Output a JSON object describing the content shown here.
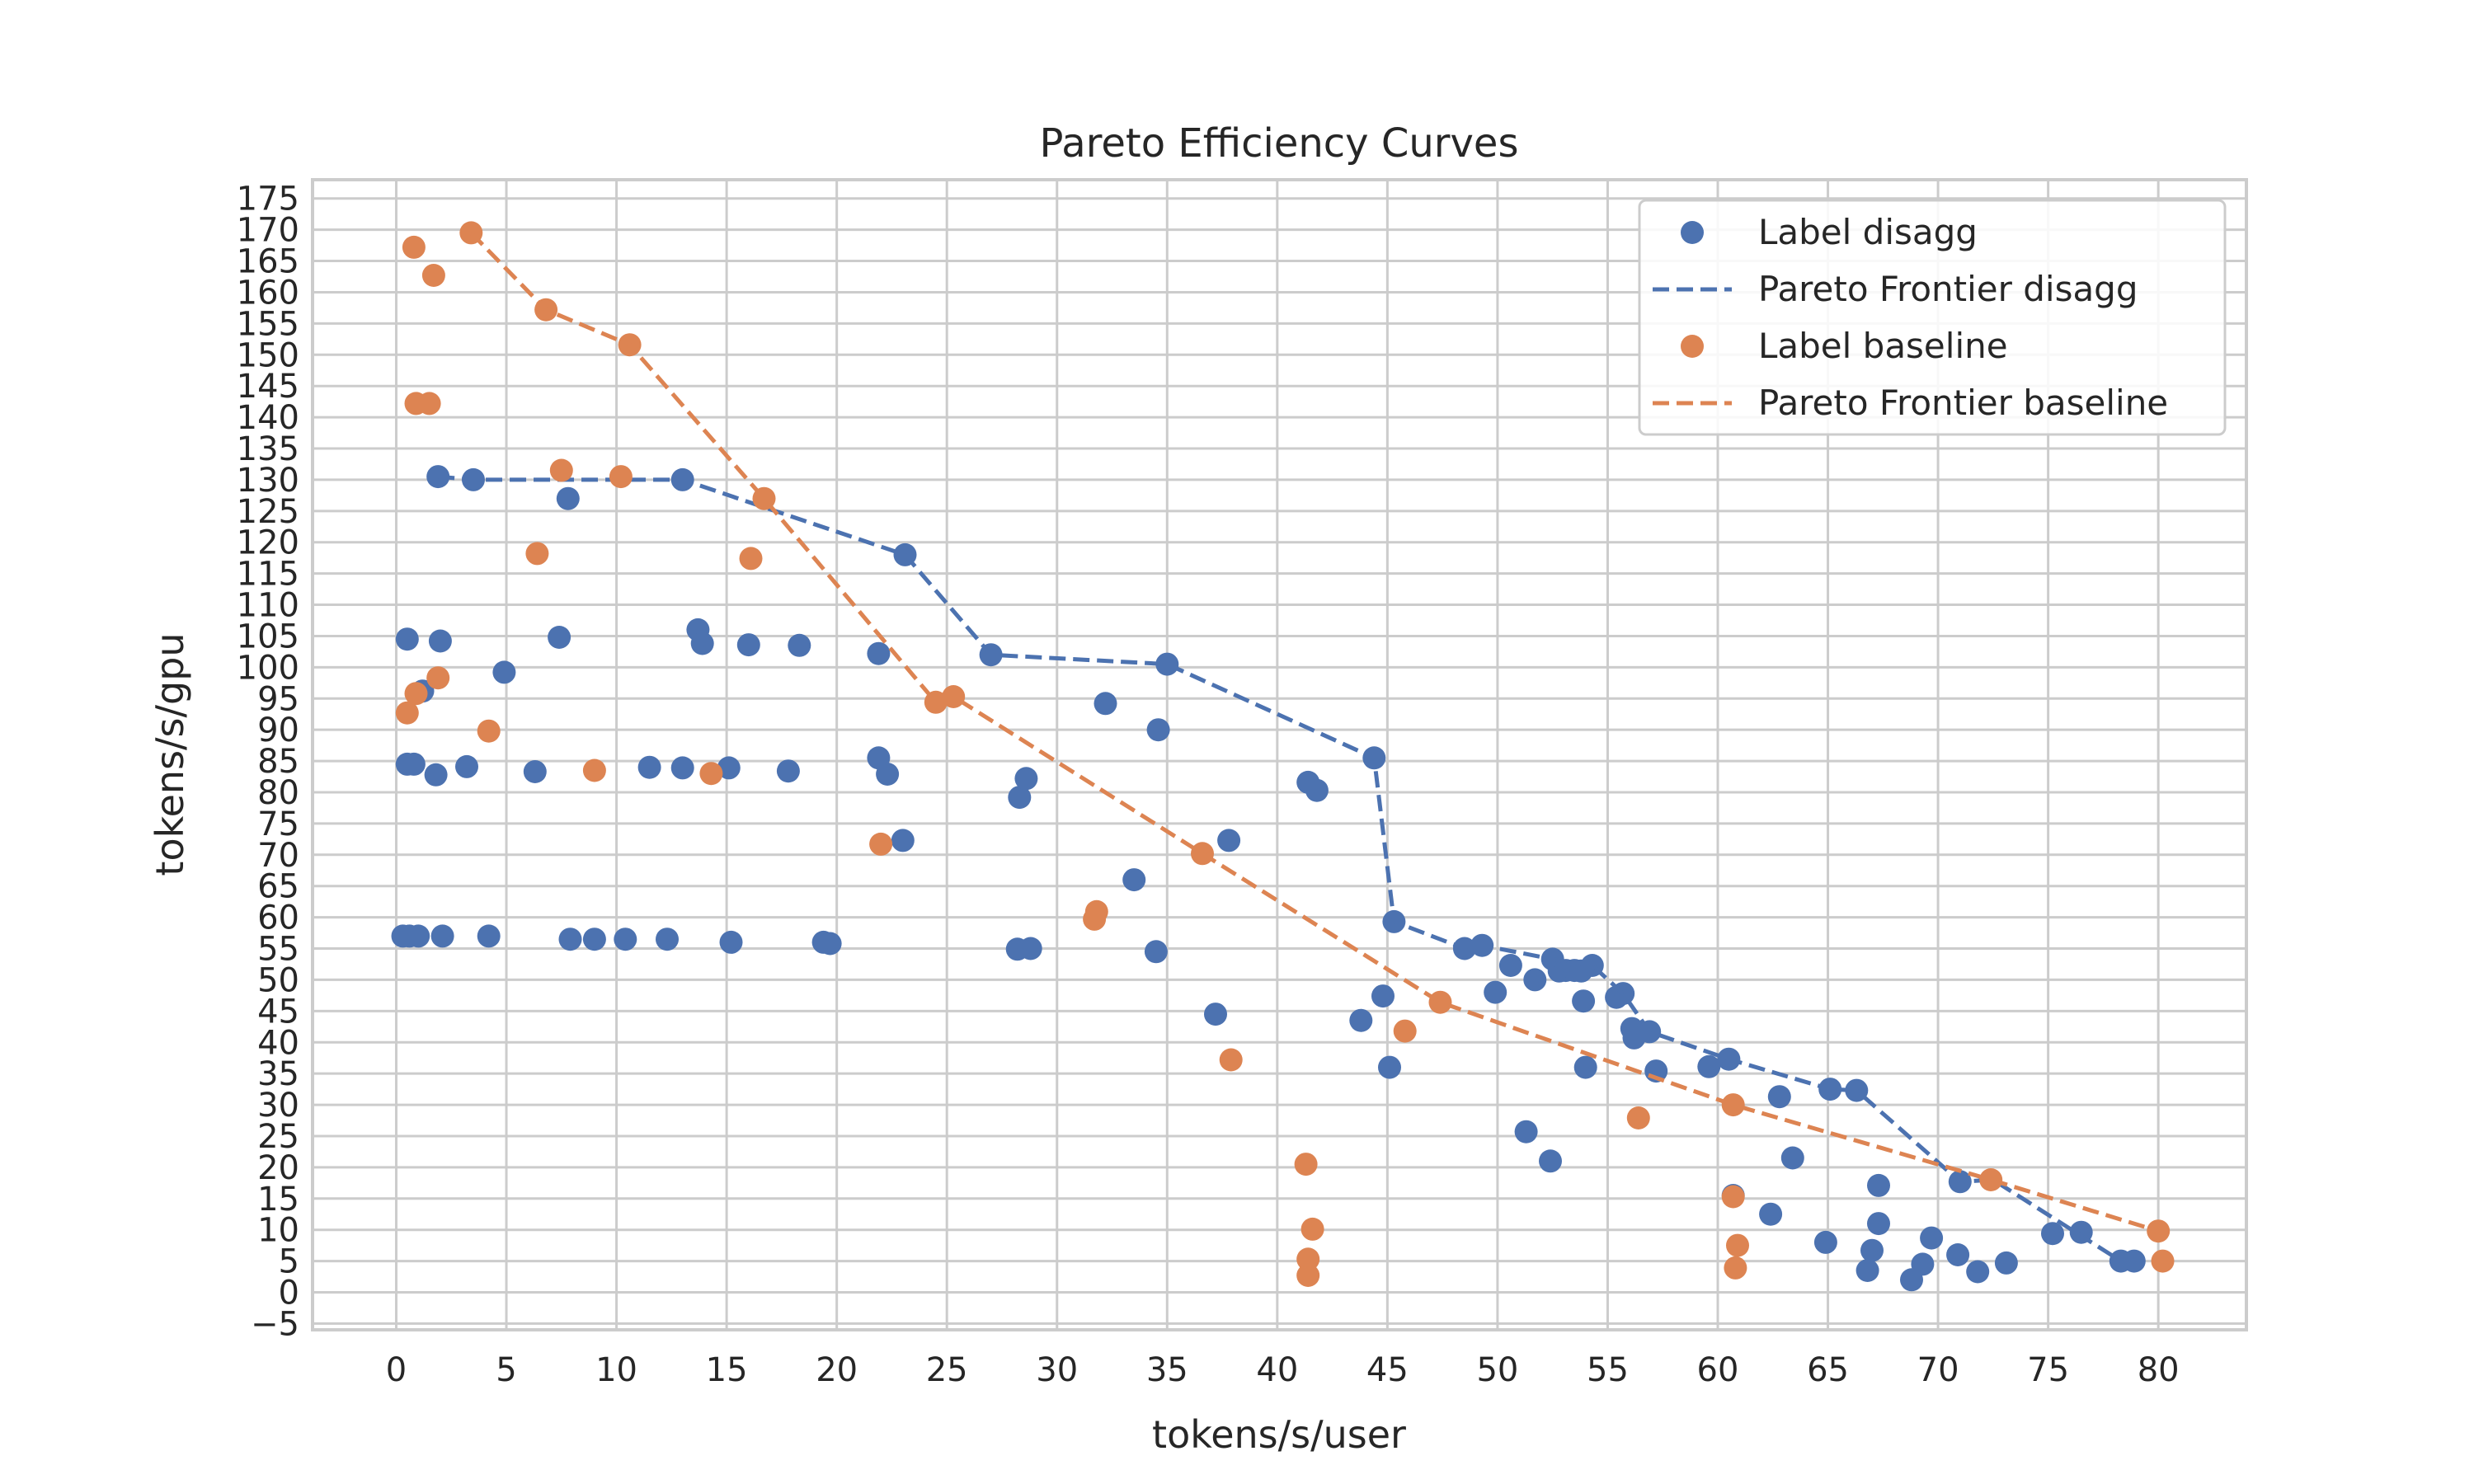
{
  "chart_data": {
    "type": "scatter",
    "title": "Pareto Efficiency Curves",
    "xlabel": "tokens/s/user",
    "ylabel": "tokens/s/gpu",
    "xlim": [
      -3.8,
      84
    ],
    "ylim": [
      -6,
      178
    ],
    "xticks": [
      0,
      5,
      10,
      15,
      20,
      25,
      30,
      35,
      40,
      45,
      50,
      55,
      60,
      65,
      70,
      75,
      80
    ],
    "yticks": [
      -5,
      0,
      5,
      10,
      15,
      20,
      25,
      30,
      35,
      40,
      45,
      50,
      55,
      60,
      65,
      70,
      75,
      80,
      85,
      90,
      95,
      100,
      105,
      110,
      115,
      120,
      125,
      130,
      135,
      140,
      145,
      150,
      155,
      160,
      165,
      170,
      175
    ],
    "grid": true,
    "legend_position": "top-right",
    "colors": {
      "disagg": "#4c72b0",
      "baseline": "#dd8452"
    },
    "legend": [
      {
        "label": "Label disagg",
        "kind": "marker",
        "series": "disagg"
      },
      {
        "label": "Pareto Frontier disagg",
        "kind": "line",
        "series": "disagg"
      },
      {
        "label": "Label baseline",
        "kind": "marker",
        "series": "baseline"
      },
      {
        "label": "Pareto Frontier baseline",
        "kind": "line",
        "series": "baseline"
      }
    ],
    "series": [
      {
        "name": "Label disagg",
        "kind": "scatter",
        "key": "disagg",
        "points": [
          [
            0.3,
            57
          ],
          [
            0.6,
            57
          ],
          [
            1.0,
            57
          ],
          [
            2.1,
            57
          ],
          [
            4.2,
            57
          ],
          [
            7.9,
            56.5
          ],
          [
            9.0,
            56.5
          ],
          [
            10.4,
            56.5
          ],
          [
            12.3,
            56.5
          ],
          [
            15.2,
            56
          ],
          [
            19.4,
            56
          ],
          [
            19.7,
            55.8
          ],
          [
            0.5,
            84.5
          ],
          [
            0.8,
            84.5
          ],
          [
            1.8,
            82.8
          ],
          [
            3.2,
            84.1
          ],
          [
            6.3,
            83.3
          ],
          [
            11.5,
            84
          ],
          [
            13.0,
            83.9
          ],
          [
            15.1,
            83.9
          ],
          [
            17.8,
            83.4
          ],
          [
            21.9,
            85.5
          ],
          [
            22.3,
            82.9
          ],
          [
            0.5,
            104.5
          ],
          [
            2.0,
            104.2
          ],
          [
            1.2,
            96.2
          ],
          [
            4.9,
            99.2
          ],
          [
            7.4,
            104.8
          ],
          [
            13.7,
            106
          ],
          [
            13.9,
            103.8
          ],
          [
            16.0,
            103.6
          ],
          [
            18.3,
            103.5
          ],
          [
            21.9,
            102.2
          ],
          [
            1.9,
            130.5
          ],
          [
            3.5,
            130
          ],
          [
            7.8,
            127
          ],
          [
            13.0,
            130
          ],
          [
            23.1,
            118
          ],
          [
            27.0,
            102
          ],
          [
            35.0,
            100.5
          ],
          [
            44.4,
            85.5
          ],
          [
            45.3,
            59.3
          ],
          [
            23.0,
            72.3
          ],
          [
            28.3,
            79.2
          ],
          [
            28.6,
            82.2
          ],
          [
            28.2,
            54.9
          ],
          [
            28.8,
            55
          ],
          [
            32.2,
            94.2
          ],
          [
            33.5,
            66
          ],
          [
            34.6,
            90
          ],
          [
            34.5,
            54.5
          ],
          [
            37.2,
            44.5
          ],
          [
            37.8,
            72.3
          ],
          [
            41.4,
            81.6
          ],
          [
            41.8,
            80.3
          ],
          [
            43.8,
            43.5
          ],
          [
            44.8,
            47.4
          ],
          [
            45.1,
            36
          ],
          [
            48.5,
            55
          ],
          [
            49.3,
            55.5
          ],
          [
            49.9,
            48
          ],
          [
            50.6,
            52.3
          ],
          [
            51.3,
            25.7
          ],
          [
            51.7,
            50
          ],
          [
            52.4,
            21
          ],
          [
            52.5,
            53.3
          ],
          [
            52.8,
            51.4
          ],
          [
            53.1,
            51.5
          ],
          [
            53.5,
            51.5
          ],
          [
            53.8,
            51.4
          ],
          [
            53.9,
            46.6
          ],
          [
            54.0,
            36
          ],
          [
            54.3,
            52.3
          ],
          [
            55.4,
            47.2
          ],
          [
            55.7,
            47.8
          ],
          [
            56.1,
            42.2
          ],
          [
            56.2,
            40.7
          ],
          [
            56.9,
            41.7
          ],
          [
            57.2,
            35.4
          ],
          [
            59.6,
            36.1
          ],
          [
            60.5,
            37.3
          ],
          [
            60.7,
            15.5
          ],
          [
            62.4,
            12.5
          ],
          [
            62.8,
            31.3
          ],
          [
            63.4,
            21.5
          ],
          [
            64.9,
            8
          ],
          [
            65.1,
            32.5
          ],
          [
            66.3,
            32.3
          ],
          [
            66.8,
            3.5
          ],
          [
            67.0,
            6.7
          ],
          [
            67.3,
            11
          ],
          [
            67.3,
            17.1
          ],
          [
            68.8,
            2
          ],
          [
            69.3,
            4.5
          ],
          [
            69.7,
            8.7
          ],
          [
            70.9,
            6
          ],
          [
            71.0,
            17.7
          ],
          [
            71.8,
            3.3
          ],
          [
            73.1,
            4.7
          ],
          [
            75.2,
            9.4
          ],
          [
            76.5,
            9.6
          ],
          [
            78.3,
            5
          ],
          [
            78.9,
            5
          ]
        ]
      },
      {
        "name": "Pareto Frontier disagg",
        "kind": "line",
        "key": "disagg",
        "points": [
          [
            1.9,
            130.5
          ],
          [
            3.5,
            130
          ],
          [
            13.0,
            130
          ],
          [
            23.1,
            118
          ],
          [
            27.0,
            102
          ],
          [
            35.0,
            100.5
          ],
          [
            44.4,
            85.5
          ],
          [
            45.3,
            59.3
          ],
          [
            48.5,
            55
          ],
          [
            49.3,
            55.5
          ],
          [
            52.5,
            53.3
          ],
          [
            54.3,
            52.3
          ],
          [
            55.7,
            47.8
          ],
          [
            56.9,
            41.7
          ],
          [
            60.5,
            37.3
          ],
          [
            65.1,
            32.5
          ],
          [
            66.3,
            32.3
          ],
          [
            71.0,
            17.7
          ],
          [
            72.5,
            18
          ],
          [
            78.3,
            5
          ],
          [
            78.9,
            5
          ]
        ]
      },
      {
        "name": "Label baseline",
        "kind": "scatter",
        "key": "baseline",
        "points": [
          [
            0.8,
            167.2
          ],
          [
            1.7,
            162.7
          ],
          [
            3.4,
            169.5
          ],
          [
            6.8,
            157.2
          ],
          [
            10.6,
            151.6
          ],
          [
            0.9,
            142.2
          ],
          [
            1.5,
            142.2
          ],
          [
            7.5,
            131.5
          ],
          [
            10.2,
            130.5
          ],
          [
            16.7,
            127
          ],
          [
            6.4,
            118.2
          ],
          [
            16.1,
            117.4
          ],
          [
            0.5,
            92.7
          ],
          [
            0.9,
            95.8
          ],
          [
            1.9,
            98.3
          ],
          [
            4.2,
            89.8
          ],
          [
            9.0,
            83.5
          ],
          [
            14.3,
            83
          ],
          [
            22.0,
            71.7
          ],
          [
            24.5,
            94.4
          ],
          [
            25.3,
            95.3
          ],
          [
            31.7,
            59.7
          ],
          [
            31.8,
            60.9
          ],
          [
            36.6,
            70.2
          ],
          [
            37.9,
            37.2
          ],
          [
            41.3,
            20.5
          ],
          [
            41.4,
            5.3
          ],
          [
            41.4,
            2.7
          ],
          [
            41.6,
            10.1
          ],
          [
            45.8,
            41.8
          ],
          [
            47.4,
            46.4
          ],
          [
            56.4,
            27.9
          ],
          [
            60.7,
            30
          ],
          [
            60.7,
            15.3
          ],
          [
            60.8,
            3.9
          ],
          [
            60.9,
            7.5
          ],
          [
            72.4,
            18
          ],
          [
            80.0,
            9.8
          ],
          [
            80.2,
            5
          ]
        ]
      },
      {
        "name": "Pareto Frontier baseline",
        "kind": "line",
        "key": "baseline",
        "points": [
          [
            3.4,
            169.5
          ],
          [
            6.8,
            157.2
          ],
          [
            10.6,
            151.6
          ],
          [
            16.7,
            127
          ],
          [
            24.5,
            94.4
          ],
          [
            25.3,
            95.3
          ],
          [
            36.6,
            70.2
          ],
          [
            47.4,
            46.4
          ],
          [
            60.7,
            30
          ],
          [
            72.4,
            18
          ],
          [
            80.0,
            9.8
          ]
        ]
      }
    ]
  }
}
